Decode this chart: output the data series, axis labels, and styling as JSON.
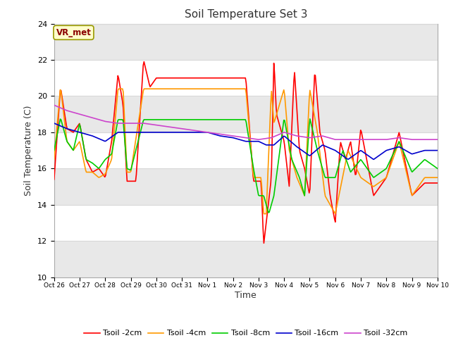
{
  "title": "Soil Temperature Set 3",
  "xlabel": "Time",
  "ylabel": "Soil Temperature (C)",
  "ylim": [
    10,
    24
  ],
  "yticks": [
    10,
    12,
    14,
    16,
    18,
    20,
    22,
    24
  ],
  "figure_bg": "#ffffff",
  "plot_bg": "#ffffff",
  "annotation_text": "VR_met",
  "annotation_color": "#8b0000",
  "annotation_bg": "#ffffcc",
  "annotation_edge": "#999900",
  "series": {
    "Tsoil -2cm": {
      "color": "#ff0000",
      "lw": 1.2
    },
    "Tsoil -4cm": {
      "color": "#ff9900",
      "lw": 1.2
    },
    "Tsoil -8cm": {
      "color": "#00cc00",
      "lw": 1.2
    },
    "Tsoil -16cm": {
      "color": "#0000cc",
      "lw": 1.2
    },
    "Tsoil -32cm": {
      "color": "#cc44cc",
      "lw": 1.2
    }
  },
  "xtick_labels": [
    "Oct 26",
    "Oct 27",
    "Oct 28",
    "Oct 29",
    "Oct 30",
    "Oct 31",
    "Nov 1",
    "Nov 2",
    "Nov 3",
    "Nov 4",
    "Nov 5",
    "Nov 6",
    "Nov 7",
    "Nov 8",
    "Nov 9",
    "Nov 10"
  ],
  "grid_color": "#d8d8d8",
  "xp_2cm": [
    0,
    0.25,
    0.5,
    0.75,
    1.0,
    1.25,
    1.5,
    1.75,
    2.0,
    2.25,
    2.5,
    2.7,
    2.85,
    3.0,
    3.2,
    3.5,
    3.75,
    4.0,
    4.1,
    4.25,
    4.4,
    4.5,
    5.0,
    5.5,
    6.0,
    6.5,
    7.0,
    7.5,
    7.8,
    8.0,
    8.1,
    8.2,
    8.3,
    8.5,
    8.6,
    8.7,
    9.0,
    9.2,
    9.4,
    9.6,
    9.8,
    10.0,
    10.2,
    10.4,
    10.6,
    10.8,
    11.0,
    11.2,
    11.4,
    11.6,
    11.8,
    12.0,
    12.5,
    13.0,
    13.5,
    14.0,
    14.5,
    15.0
  ],
  "yp_2cm": [
    15.4,
    20.5,
    18.2,
    18.0,
    18.5,
    16.5,
    15.8,
    16.0,
    15.5,
    17.5,
    21.2,
    19.5,
    15.3,
    15.3,
    15.3,
    22.0,
    20.5,
    21.0,
    21.0,
    21.0,
    21.0,
    21.0,
    21.0,
    21.0,
    21.0,
    21.0,
    21.0,
    21.0,
    15.3,
    15.3,
    15.3,
    11.8,
    13.0,
    15.5,
    22.0,
    19.0,
    17.5,
    15.0,
    21.5,
    17.0,
    16.0,
    14.5,
    21.5,
    18.0,
    17.0,
    14.5,
    13.0,
    17.5,
    16.5,
    17.5,
    15.5,
    18.2,
    14.5,
    15.5,
    18.0,
    14.5,
    15.2,
    15.2
  ],
  "xp_4cm": [
    0,
    0.25,
    0.5,
    0.75,
    1.0,
    1.25,
    1.5,
    1.75,
    2.0,
    2.25,
    2.5,
    2.7,
    2.85,
    3.0,
    3.5,
    4.0,
    4.5,
    5.0,
    5.5,
    6.0,
    6.5,
    7.0,
    7.5,
    7.8,
    8.0,
    8.1,
    8.2,
    8.3,
    8.5,
    8.6,
    9.0,
    9.2,
    9.5,
    9.8,
    10.0,
    10.3,
    10.6,
    11.0,
    11.5,
    12.0,
    12.5,
    13.0,
    13.5,
    14.0,
    14.5,
    15.0
  ],
  "yp_4cm": [
    16.5,
    20.5,
    17.5,
    17.0,
    17.5,
    15.8,
    15.8,
    15.5,
    15.7,
    16.5,
    20.4,
    20.4,
    15.8,
    15.8,
    20.4,
    20.4,
    20.4,
    20.4,
    20.4,
    20.4,
    20.4,
    20.4,
    20.4,
    15.5,
    15.5,
    15.5,
    13.5,
    13.5,
    20.4,
    18.5,
    20.4,
    17.0,
    15.5,
    14.5,
    20.4,
    18.0,
    14.5,
    13.5,
    17.0,
    15.5,
    15.0,
    15.5,
    17.5,
    14.5,
    15.5,
    15.5
  ],
  "xp_8cm": [
    0,
    0.25,
    0.5,
    0.75,
    1.0,
    1.25,
    1.5,
    1.75,
    2.0,
    2.25,
    2.5,
    2.7,
    2.85,
    3.0,
    3.5,
    4.0,
    4.5,
    5.0,
    5.5,
    6.0,
    6.5,
    7.0,
    7.5,
    7.8,
    8.0,
    8.2,
    8.4,
    8.6,
    9.0,
    9.3,
    9.6,
    9.8,
    10.0,
    10.3,
    10.6,
    11.0,
    11.3,
    11.6,
    12.0,
    12.5,
    13.0,
    13.5,
    14.0,
    14.5,
    15.0
  ],
  "yp_8cm": [
    17.0,
    18.8,
    17.5,
    17.0,
    18.5,
    16.5,
    16.3,
    16.0,
    16.5,
    16.8,
    18.7,
    18.7,
    16.0,
    15.9,
    18.7,
    18.7,
    18.7,
    18.7,
    18.7,
    18.7,
    18.7,
    18.7,
    18.7,
    16.0,
    14.5,
    14.5,
    13.5,
    14.5,
    18.8,
    16.5,
    15.5,
    14.5,
    18.8,
    17.0,
    15.5,
    15.5,
    17.0,
    15.8,
    16.5,
    15.5,
    16.0,
    17.5,
    15.8,
    16.5,
    16.0
  ],
  "xp_16cm": [
    0,
    0.5,
    1.0,
    1.5,
    2.0,
    2.5,
    3.0,
    3.5,
    4.0,
    4.5,
    5.0,
    5.5,
    6.0,
    6.5,
    7.0,
    7.5,
    8.0,
    8.3,
    8.6,
    9.0,
    9.5,
    10.0,
    10.5,
    11.0,
    11.5,
    12.0,
    12.5,
    13.0,
    13.5,
    14.0,
    14.5,
    15.0
  ],
  "yp_16cm": [
    18.5,
    18.2,
    18.0,
    17.8,
    17.5,
    18.0,
    18.0,
    18.0,
    18.0,
    18.0,
    18.0,
    18.0,
    18.0,
    17.8,
    17.7,
    17.5,
    17.5,
    17.3,
    17.3,
    17.8,
    17.2,
    16.7,
    17.3,
    17.0,
    16.5,
    17.0,
    16.5,
    17.0,
    17.2,
    16.8,
    17.0,
    17.0
  ],
  "xp_32cm": [
    0,
    0.5,
    1.0,
    1.5,
    2.0,
    2.5,
    3.0,
    3.5,
    4.0,
    4.5,
    5.0,
    5.5,
    6.0,
    6.5,
    7.0,
    7.5,
    8.0,
    8.5,
    9.0,
    9.5,
    10.0,
    10.5,
    11.0,
    11.5,
    12.0,
    12.5,
    13.0,
    13.5,
    14.0,
    14.5,
    15.0
  ],
  "yp_32cm": [
    19.5,
    19.2,
    19.0,
    18.8,
    18.6,
    18.5,
    18.5,
    18.5,
    18.4,
    18.3,
    18.2,
    18.1,
    18.0,
    17.9,
    17.8,
    17.7,
    17.6,
    17.7,
    18.0,
    17.8,
    17.7,
    17.8,
    17.6,
    17.6,
    17.6,
    17.6,
    17.6,
    17.7,
    17.6,
    17.6,
    17.6
  ]
}
